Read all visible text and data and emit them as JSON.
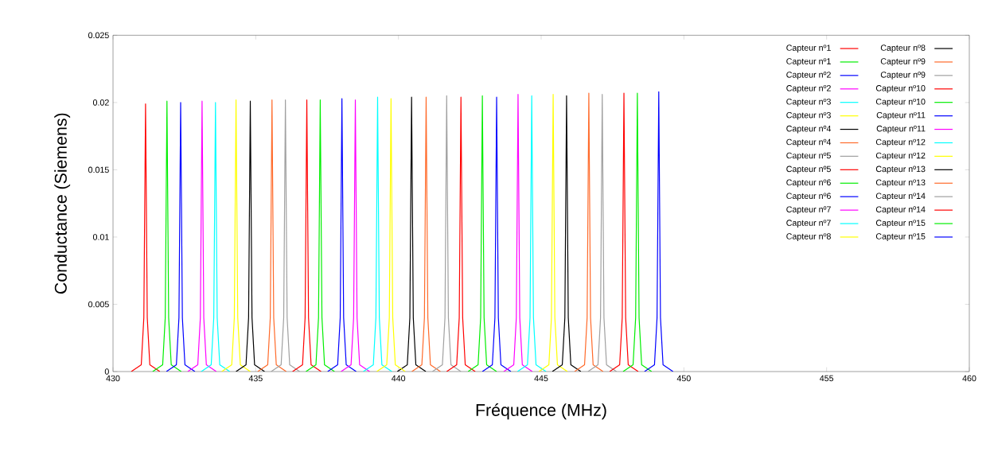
{
  "chart_data": {
    "type": "line",
    "xlabel": "Fréquence (MHz)",
    "ylabel": "Conductance (Siemens)",
    "xlim": [
      430,
      460
    ],
    "ylim": [
      0,
      0.025
    ],
    "xticks": [
      430,
      435,
      440,
      445,
      450,
      455,
      460
    ],
    "yticks": [
      0,
      0.005,
      0.01,
      0.015,
      0.02,
      0.025
    ],
    "legend": "top right",
    "line_style": "solid",
    "marker": "none",
    "series": [
      {
        "name": "Capteur nº1",
        "color": "#ff0000",
        "x": [
          430.64,
          430.99,
          431.08,
          431.14,
          431.2,
          431.29,
          431.64
        ],
        "values": [
          0,
          0.0005,
          0.004,
          0.0199,
          0.004,
          0.0005,
          0
        ]
      },
      {
        "name": "Capteur nº1",
        "color": "#00ee00",
        "x": [
          431.39,
          431.74,
          431.83,
          431.89,
          431.95,
          432.04,
          432.39
        ],
        "values": [
          0,
          0.0005,
          0.004,
          0.0201,
          0.004,
          0.0005,
          0
        ]
      },
      {
        "name": "Capteur nº2",
        "color": "#0000ff",
        "x": [
          431.87,
          432.22,
          432.31,
          432.37,
          432.43,
          432.52,
          432.87
        ],
        "values": [
          0,
          0.0005,
          0.004,
          0.02,
          0.004,
          0.0005,
          0
        ]
      },
      {
        "name": "Capteur nº2",
        "color": "#ff00ff",
        "x": [
          432.62,
          432.97,
          433.06,
          433.12,
          433.18,
          433.27,
          433.62
        ],
        "values": [
          0,
          0.0005,
          0.004,
          0.0201,
          0.004,
          0.0005,
          0
        ]
      },
      {
        "name": "Capteur nº3",
        "color": "#00ffff",
        "x": [
          433.09,
          433.44,
          433.53,
          433.59,
          433.65,
          433.74,
          434.09
        ],
        "values": [
          0,
          0.0005,
          0.004,
          0.02,
          0.004,
          0.0005,
          0
        ]
      },
      {
        "name": "Capteur nº3",
        "color": "#ffff00",
        "x": [
          433.81,
          434.16,
          434.25,
          434.31,
          434.37,
          434.46,
          434.81
        ],
        "values": [
          0,
          0.0005,
          0.004,
          0.0202,
          0.004,
          0.0005,
          0
        ]
      },
      {
        "name": "Capteur nº4",
        "color": "#000000",
        "x": [
          434.31,
          434.66,
          434.75,
          434.81,
          434.87,
          434.96,
          435.31
        ],
        "values": [
          0,
          0.0005,
          0.004,
          0.0201,
          0.004,
          0.0005,
          0
        ]
      },
      {
        "name": "Capteur nº4",
        "color": "#ff6a2a",
        "x": [
          435.07,
          435.42,
          435.51,
          435.57,
          435.63,
          435.72,
          436.07
        ],
        "values": [
          0,
          0.0005,
          0.004,
          0.0202,
          0.004,
          0.0005,
          0
        ]
      },
      {
        "name": "Capteur nº5",
        "color": "#a0a0a0",
        "x": [
          435.54,
          435.89,
          435.98,
          436.04,
          436.1,
          436.19,
          436.54
        ],
        "values": [
          0,
          0.0005,
          0.004,
          0.0202,
          0.004,
          0.0005,
          0
        ]
      },
      {
        "name": "Capteur nº5",
        "color": "#ff0000",
        "x": [
          436.29,
          436.64,
          436.73,
          436.79,
          436.85,
          436.94,
          437.29
        ],
        "values": [
          0,
          0.0005,
          0.004,
          0.0202,
          0.004,
          0.0005,
          0
        ]
      },
      {
        "name": "Capteur nº6",
        "color": "#00ee00",
        "x": [
          436.76,
          437.11,
          437.2,
          437.26,
          437.32,
          437.41,
          437.76
        ],
        "values": [
          0,
          0.0005,
          0.004,
          0.0202,
          0.004,
          0.0005,
          0
        ]
      },
      {
        "name": "Capteur nº6",
        "color": "#0000ff",
        "x": [
          437.52,
          437.87,
          437.96,
          438.02,
          438.08,
          438.17,
          438.52
        ],
        "values": [
          0,
          0.0005,
          0.004,
          0.0203,
          0.004,
          0.0005,
          0
        ]
      },
      {
        "name": "Capteur nº7",
        "color": "#ff00ff",
        "x": [
          437.99,
          438.34,
          438.43,
          438.49,
          438.55,
          438.64,
          438.99
        ],
        "values": [
          0,
          0.0005,
          0.004,
          0.0202,
          0.004,
          0.0005,
          0
        ]
      },
      {
        "name": "Capteur nº7",
        "color": "#00ffff",
        "x": [
          438.77,
          439.12,
          439.21,
          439.27,
          439.33,
          439.42,
          439.77
        ],
        "values": [
          0,
          0.0005,
          0.004,
          0.0204,
          0.004,
          0.0005,
          0
        ]
      },
      {
        "name": "Capteur nº8",
        "color": "#ffff00",
        "x": [
          439.24,
          439.59,
          439.68,
          439.74,
          439.8,
          439.89,
          440.24
        ],
        "values": [
          0,
          0.0005,
          0.004,
          0.0203,
          0.004,
          0.0005,
          0
        ]
      },
      {
        "name": "Capteur nº8",
        "color": "#000000",
        "x": [
          439.96,
          440.31,
          440.4,
          440.46,
          440.52,
          440.61,
          440.96
        ],
        "values": [
          0,
          0.0005,
          0.004,
          0.0204,
          0.004,
          0.0005,
          0
        ]
      },
      {
        "name": "Capteur nº9",
        "color": "#ff6a2a",
        "x": [
          440.47,
          440.82,
          440.91,
          440.97,
          441.03,
          441.12,
          441.47
        ],
        "values": [
          0,
          0.0005,
          0.004,
          0.0204,
          0.004,
          0.0005,
          0
        ]
      },
      {
        "name": "Capteur nº9",
        "color": "#a0a0a0",
        "x": [
          441.19,
          441.54,
          441.63,
          441.69,
          441.75,
          441.84,
          442.19
        ],
        "values": [
          0,
          0.0005,
          0.004,
          0.0205,
          0.004,
          0.0005,
          0
        ]
      },
      {
        "name": "Capteur nº10",
        "color": "#ff0000",
        "x": [
          441.69,
          442.04,
          442.13,
          442.19,
          442.25,
          442.34,
          442.69
        ],
        "values": [
          0,
          0.0005,
          0.004,
          0.0204,
          0.004,
          0.0005,
          0
        ]
      },
      {
        "name": "Capteur nº10",
        "color": "#00ee00",
        "x": [
          442.44,
          442.79,
          442.88,
          442.94,
          443.0,
          443.09,
          443.44
        ],
        "values": [
          0,
          0.0005,
          0.004,
          0.0205,
          0.004,
          0.0005,
          0
        ]
      },
      {
        "name": "Capteur nº11",
        "color": "#0000ff",
        "x": [
          442.94,
          443.29,
          443.38,
          443.44,
          443.5,
          443.59,
          443.94
        ],
        "values": [
          0,
          0.0005,
          0.004,
          0.0204,
          0.004,
          0.0005,
          0
        ]
      },
      {
        "name": "Capteur nº11",
        "color": "#ff00ff",
        "x": [
          443.69,
          444.04,
          444.13,
          444.19,
          444.25,
          444.34,
          444.69
        ],
        "values": [
          0,
          0.0005,
          0.004,
          0.0206,
          0.004,
          0.0005,
          0
        ]
      },
      {
        "name": "Capteur nº12",
        "color": "#00ffff",
        "x": [
          444.17,
          444.52,
          444.61,
          444.67,
          444.73,
          444.82,
          445.17
        ],
        "values": [
          0,
          0.0005,
          0.004,
          0.0205,
          0.004,
          0.0005,
          0
        ]
      },
      {
        "name": "Capteur nº12",
        "color": "#ffff00",
        "x": [
          444.92,
          445.27,
          445.36,
          445.42,
          445.48,
          445.57,
          445.92
        ],
        "values": [
          0,
          0.0005,
          0.004,
          0.0206,
          0.004,
          0.0005,
          0
        ]
      },
      {
        "name": "Capteur nº13",
        "color": "#000000",
        "x": [
          445.39,
          445.74,
          445.83,
          445.89,
          445.95,
          446.04,
          446.39
        ],
        "values": [
          0,
          0.0005,
          0.004,
          0.0205,
          0.004,
          0.0005,
          0
        ]
      },
      {
        "name": "Capteur nº13",
        "color": "#ff6a2a",
        "x": [
          446.17,
          446.52,
          446.61,
          446.67,
          446.73,
          446.82,
          447.17
        ],
        "values": [
          0,
          0.0005,
          0.004,
          0.0207,
          0.004,
          0.0005,
          0
        ]
      },
      {
        "name": "Capteur nº14",
        "color": "#a0a0a0",
        "x": [
          446.64,
          446.99,
          447.08,
          447.14,
          447.2,
          447.29,
          447.64
        ],
        "values": [
          0,
          0.0005,
          0.004,
          0.0206,
          0.004,
          0.0005,
          0
        ]
      },
      {
        "name": "Capteur nº14",
        "color": "#ff0000",
        "x": [
          447.4,
          447.75,
          447.84,
          447.9,
          447.96,
          448.05,
          448.4
        ],
        "values": [
          0,
          0.0005,
          0.004,
          0.0207,
          0.004,
          0.0005,
          0
        ]
      },
      {
        "name": "Capteur nº15",
        "color": "#00ee00",
        "x": [
          447.87,
          448.22,
          448.31,
          448.37,
          448.43,
          448.52,
          448.87
        ],
        "values": [
          0,
          0.0005,
          0.004,
          0.0207,
          0.004,
          0.0005,
          0
        ]
      },
      {
        "name": "Capteur nº15",
        "color": "#0000ff",
        "x": [
          448.62,
          448.97,
          449.06,
          449.12,
          449.18,
          449.27,
          449.62
        ],
        "values": [
          0,
          0.0005,
          0.004,
          0.0208,
          0.004,
          0.0005,
          0
        ]
      }
    ]
  }
}
